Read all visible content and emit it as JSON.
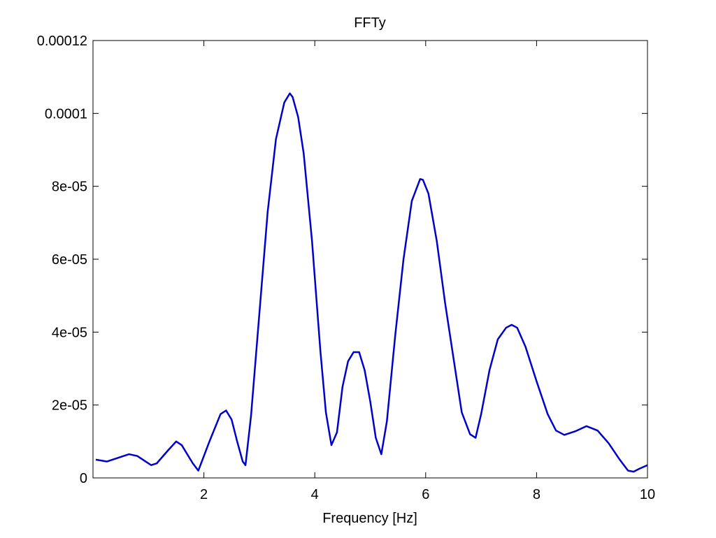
{
  "chart_data": {
    "type": "line",
    "title": "FFTy",
    "xlabel": "Frequency [Hz]",
    "ylabel": "",
    "xlim": [
      0,
      10
    ],
    "ylim": [
      0,
      0.00012
    ],
    "grid": false,
    "x_ticks": [
      2,
      4,
      6,
      8,
      10
    ],
    "x_tick_labels": [
      "2",
      "4",
      "6",
      "8",
      "10"
    ],
    "y_ticks": [
      0,
      2e-05,
      4e-05,
      6e-05,
      8e-05,
      0.0001,
      0.00012
    ],
    "y_tick_labels": [
      "0",
      "2e-05",
      "4e-05",
      "6e-05",
      "8e-05",
      "0.0001",
      "0.00012"
    ],
    "series": [
      {
        "color": "#0000cc",
        "x": [
          0.05,
          0.25,
          0.45,
          0.65,
          0.8,
          0.95,
          1.05,
          1.15,
          1.35,
          1.5,
          1.6,
          1.7,
          1.8,
          1.9,
          2.1,
          2.3,
          2.4,
          2.5,
          2.6,
          2.7,
          2.75,
          2.85,
          3.0,
          3.15,
          3.3,
          3.45,
          3.55,
          3.6,
          3.7,
          3.8,
          3.95,
          4.1,
          4.2,
          4.3,
          4.4,
          4.5,
          4.6,
          4.7,
          4.8,
          4.9,
          5.0,
          5.1,
          5.2,
          5.3,
          5.45,
          5.6,
          5.75,
          5.9,
          5.95,
          6.05,
          6.2,
          6.35,
          6.5,
          6.65,
          6.8,
          6.9,
          7.0,
          7.15,
          7.3,
          7.45,
          7.55,
          7.65,
          7.8,
          8.0,
          8.2,
          8.35,
          8.5,
          8.7,
          8.9,
          9.1,
          9.3,
          9.5,
          9.65,
          9.75,
          9.85,
          10.0
        ],
        "y": [
          5e-06,
          4.5e-06,
          5.5e-06,
          6.5e-06,
          6e-06,
          4.5e-06,
          3.5e-06,
          4e-06,
          7.5e-06,
          1e-05,
          9e-06,
          6.5e-06,
          4e-06,
          2e-06,
          1e-05,
          1.75e-05,
          1.85e-05,
          1.6e-05,
          1e-05,
          4.5e-06,
          3.5e-06,
          1.7e-05,
          4.5e-05,
          7.3e-05,
          9.3e-05,
          0.000103,
          0.0001055,
          0.0001045,
          9.9e-05,
          8.9e-05,
          6.5e-05,
          3.5e-05,
          1.8e-05,
          9e-06,
          1.25e-05,
          2.5e-05,
          3.2e-05,
          3.45e-05,
          3.45e-05,
          2.95e-05,
          2.1e-05,
          1.1e-05,
          6.5e-06,
          1.55e-05,
          3.9e-05,
          6e-05,
          7.6e-05,
          8.2e-05,
          8.18e-05,
          7.8e-05,
          6.5e-05,
          4.8e-05,
          3.3e-05,
          1.8e-05,
          1.2e-05,
          1.1e-05,
          1.75e-05,
          2.95e-05,
          3.8e-05,
          4.12e-05,
          4.2e-05,
          4.12e-05,
          3.6e-05,
          2.65e-05,
          1.75e-05,
          1.3e-05,
          1.18e-05,
          1.28e-05,
          1.42e-05,
          1.3e-05,
          9.5e-06,
          5e-06,
          2e-06,
          1.7e-06,
          2.5e-06,
          3.5e-06
        ]
      }
    ]
  }
}
